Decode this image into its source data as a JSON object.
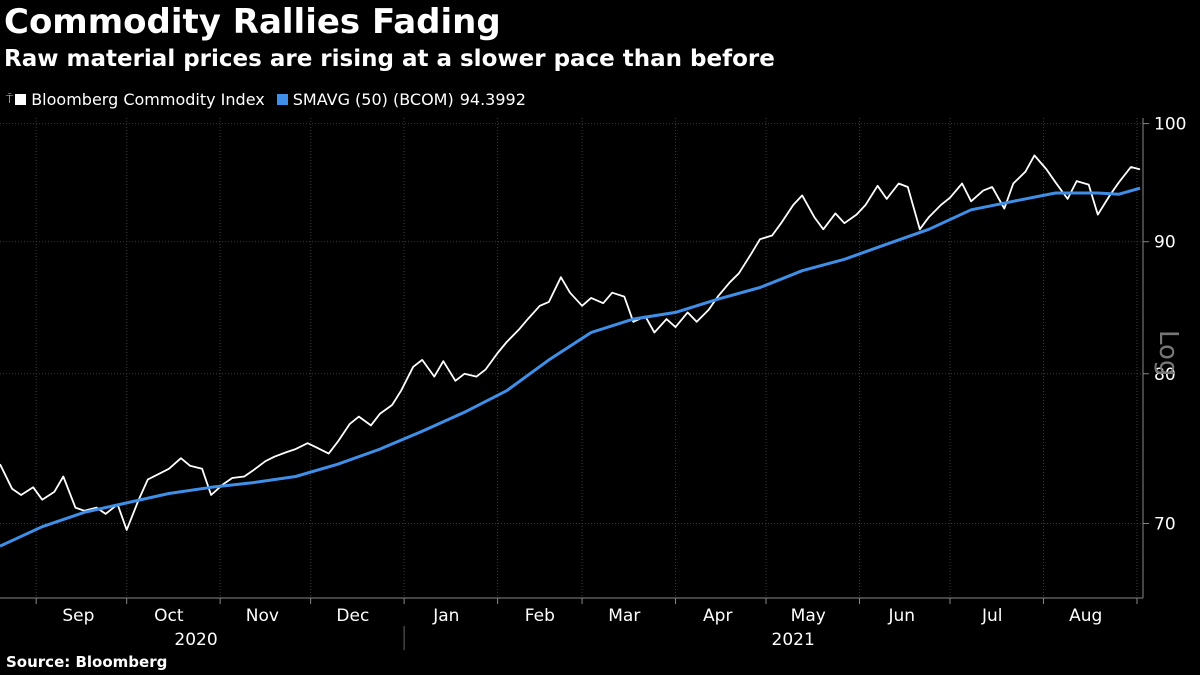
{
  "chart_data": {
    "type": "line",
    "title": "Commodity Rallies Fading",
    "subtitle": "Raw material prices are rising at a slower pace than before",
    "source": "Source: Bloomberg",
    "y_scale": "log",
    "y_scale_label": "Log",
    "ylim": [
      65.5,
      100.5
    ],
    "yticks": [
      70,
      80,
      90,
      100
    ],
    "grid": {
      "vertical": true,
      "horizontal": false
    },
    "x_range": [
      "2020-08-20",
      "2021-09-03"
    ],
    "months": [
      {
        "label": "Sep",
        "date": "2020-09-15"
      },
      {
        "label": "Oct",
        "date": "2020-10-15"
      },
      {
        "label": "Nov",
        "date": "2020-11-15"
      },
      {
        "label": "Dec",
        "date": "2020-12-15"
      },
      {
        "label": "Jan",
        "date": "2021-01-15"
      },
      {
        "label": "Feb",
        "date": "2021-02-15"
      },
      {
        "label": "Mar",
        "date": "2021-03-15"
      },
      {
        "label": "Apr",
        "date": "2021-04-15"
      },
      {
        "label": "May",
        "date": "2021-05-15"
      },
      {
        "label": "Jun",
        "date": "2021-06-15"
      },
      {
        "label": "Jul",
        "date": "2021-07-15"
      },
      {
        "label": "Aug",
        "date": "2021-08-15"
      }
    ],
    "month_boundaries": [
      "2020-09-01",
      "2020-10-01",
      "2020-11-01",
      "2020-12-01",
      "2021-01-01",
      "2021-02-01",
      "2021-03-01",
      "2021-04-01",
      "2021-05-01",
      "2021-06-01",
      "2021-07-01",
      "2021-08-01",
      "2021-09-01"
    ],
    "years": [
      {
        "label": "2020",
        "date": "2020-10-24"
      },
      {
        "label": "2021",
        "date": "2021-05-10"
      }
    ],
    "year_boundary": "2021-01-01",
    "series": [
      {
        "name": "Bloomberg Commodity Index",
        "color": "#ffffff",
        "points": [
          [
            "2020-08-20",
            73.8
          ],
          [
            "2020-08-24",
            72.2
          ],
          [
            "2020-08-27",
            71.8
          ],
          [
            "2020-08-31",
            72.3
          ],
          [
            "2020-09-03",
            71.5
          ],
          [
            "2020-09-07",
            72.0
          ],
          [
            "2020-09-10",
            73.0
          ],
          [
            "2020-09-14",
            71.0
          ],
          [
            "2020-09-17",
            70.8
          ],
          [
            "2020-09-21",
            71.0
          ],
          [
            "2020-09-24",
            70.6
          ],
          [
            "2020-09-28",
            71.2
          ],
          [
            "2020-10-01",
            69.6
          ],
          [
            "2020-10-05",
            71.5
          ],
          [
            "2020-10-08",
            72.8
          ],
          [
            "2020-10-12",
            73.2
          ],
          [
            "2020-10-15",
            73.5
          ],
          [
            "2020-10-19",
            74.2
          ],
          [
            "2020-10-22",
            73.7
          ],
          [
            "2020-10-26",
            73.5
          ],
          [
            "2020-10-29",
            71.8
          ],
          [
            "2020-11-02",
            72.5
          ],
          [
            "2020-11-05",
            72.9
          ],
          [
            "2020-11-09",
            73.0
          ],
          [
            "2020-11-12",
            73.4
          ],
          [
            "2020-11-16",
            74.0
          ],
          [
            "2020-11-19",
            74.3
          ],
          [
            "2020-11-23",
            74.6
          ],
          [
            "2020-11-26",
            74.8
          ],
          [
            "2020-11-30",
            75.2
          ],
          [
            "2020-12-03",
            74.9
          ],
          [
            "2020-12-07",
            74.5
          ],
          [
            "2020-12-10",
            75.3
          ],
          [
            "2020-12-14",
            76.5
          ],
          [
            "2020-12-17",
            77.0
          ],
          [
            "2020-12-21",
            76.4
          ],
          [
            "2020-12-24",
            77.2
          ],
          [
            "2020-12-28",
            77.8
          ],
          [
            "2020-12-31",
            78.8
          ],
          [
            "2021-01-04",
            80.5
          ],
          [
            "2021-01-07",
            81.0
          ],
          [
            "2021-01-11",
            79.8
          ],
          [
            "2021-01-14",
            80.9
          ],
          [
            "2021-01-18",
            79.5
          ],
          [
            "2021-01-21",
            80.0
          ],
          [
            "2021-01-25",
            79.8
          ],
          [
            "2021-01-28",
            80.3
          ],
          [
            "2021-02-01",
            81.5
          ],
          [
            "2021-02-04",
            82.3
          ],
          [
            "2021-02-08",
            83.2
          ],
          [
            "2021-02-11",
            84.0
          ],
          [
            "2021-02-15",
            85.0
          ],
          [
            "2021-02-18",
            85.3
          ],
          [
            "2021-02-22",
            87.2
          ],
          [
            "2021-02-25",
            86.0
          ],
          [
            "2021-03-01",
            85.0
          ],
          [
            "2021-03-04",
            85.6
          ],
          [
            "2021-03-08",
            85.2
          ],
          [
            "2021-03-11",
            86.0
          ],
          [
            "2021-03-15",
            85.7
          ],
          [
            "2021-03-18",
            83.8
          ],
          [
            "2021-03-22",
            84.2
          ],
          [
            "2021-03-25",
            83.0
          ],
          [
            "2021-03-29",
            84.0
          ],
          [
            "2021-04-01",
            83.4
          ],
          [
            "2021-04-05",
            84.5
          ],
          [
            "2021-04-08",
            83.8
          ],
          [
            "2021-04-12",
            84.7
          ],
          [
            "2021-04-15",
            85.7
          ],
          [
            "2021-04-19",
            86.8
          ],
          [
            "2021-04-22",
            87.5
          ],
          [
            "2021-04-26",
            89.0
          ],
          [
            "2021-04-29",
            90.2
          ],
          [
            "2021-05-03",
            90.5
          ],
          [
            "2021-05-06",
            91.5
          ],
          [
            "2021-05-10",
            93.0
          ],
          [
            "2021-05-13",
            93.8
          ],
          [
            "2021-05-17",
            92.0
          ],
          [
            "2021-05-20",
            91.0
          ],
          [
            "2021-05-24",
            92.3
          ],
          [
            "2021-05-27",
            91.5
          ],
          [
            "2021-05-31",
            92.2
          ],
          [
            "2021-06-03",
            93.0
          ],
          [
            "2021-06-07",
            94.6
          ],
          [
            "2021-06-10",
            93.5
          ],
          [
            "2021-06-14",
            94.8
          ],
          [
            "2021-06-17",
            94.5
          ],
          [
            "2021-06-21",
            91.0
          ],
          [
            "2021-06-24",
            92.0
          ],
          [
            "2021-06-28",
            93.0
          ],
          [
            "2021-07-01",
            93.6
          ],
          [
            "2021-07-05",
            94.8
          ],
          [
            "2021-07-08",
            93.3
          ],
          [
            "2021-07-12",
            94.2
          ],
          [
            "2021-07-15",
            94.5
          ],
          [
            "2021-07-19",
            92.7
          ],
          [
            "2021-07-22",
            94.8
          ],
          [
            "2021-07-26",
            95.8
          ],
          [
            "2021-07-29",
            97.2
          ],
          [
            "2021-08-02",
            96.0
          ],
          [
            "2021-08-05",
            94.9
          ],
          [
            "2021-08-09",
            93.5
          ],
          [
            "2021-08-12",
            95.0
          ],
          [
            "2021-08-16",
            94.7
          ],
          [
            "2021-08-19",
            92.2
          ],
          [
            "2021-08-23",
            93.8
          ],
          [
            "2021-08-26",
            94.9
          ],
          [
            "2021-08-30",
            96.2
          ],
          [
            "2021-09-02",
            96.0
          ]
        ]
      },
      {
        "name": "SMAVG (50) (BCOM)",
        "last_value": "94.3992",
        "color": "#3f8fe8",
        "points": [
          [
            "2020-08-20",
            68.6
          ],
          [
            "2020-09-03",
            69.8
          ],
          [
            "2020-09-17",
            70.7
          ],
          [
            "2020-10-01",
            71.3
          ],
          [
            "2020-10-15",
            71.9
          ],
          [
            "2020-10-29",
            72.3
          ],
          [
            "2020-11-12",
            72.6
          ],
          [
            "2020-11-26",
            73.0
          ],
          [
            "2020-12-10",
            73.8
          ],
          [
            "2020-12-24",
            74.8
          ],
          [
            "2021-01-07",
            76.0
          ],
          [
            "2021-01-21",
            77.3
          ],
          [
            "2021-02-04",
            78.8
          ],
          [
            "2021-02-18",
            81.0
          ],
          [
            "2021-03-04",
            83.0
          ],
          [
            "2021-03-18",
            84.0
          ],
          [
            "2021-04-01",
            84.5
          ],
          [
            "2021-04-15",
            85.5
          ],
          [
            "2021-04-29",
            86.4
          ],
          [
            "2021-05-13",
            87.7
          ],
          [
            "2021-05-27",
            88.6
          ],
          [
            "2021-06-10",
            89.8
          ],
          [
            "2021-06-24",
            91.0
          ],
          [
            "2021-07-08",
            92.6
          ],
          [
            "2021-07-22",
            93.3
          ],
          [
            "2021-08-05",
            94.0
          ],
          [
            "2021-08-19",
            94.0
          ],
          [
            "2021-08-26",
            93.9
          ],
          [
            "2021-09-02",
            94.4
          ]
        ]
      }
    ]
  }
}
